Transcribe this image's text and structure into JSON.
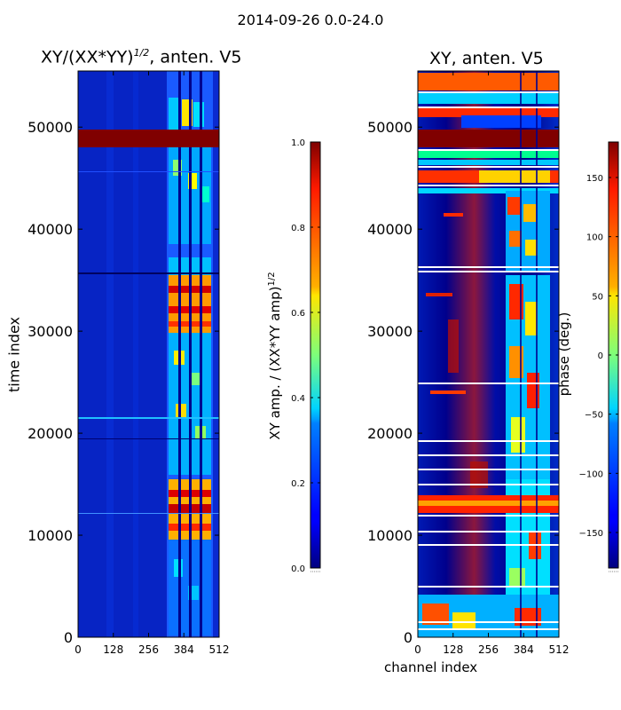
{
  "suptitle": "2014-09-26 0.0-24.0",
  "chart_data": [
    {
      "type": "heatmap",
      "title": "XY/(XX*YY)^1/2, anten. V5",
      "title_main": "XY/(XX*YY)",
      "title_sup": "1/2",
      "title_rest": ", anten. V5",
      "xlabel": "",
      "ylabel": "time index",
      "xlim": [
        0,
        512
      ],
      "ylim": [
        0,
        55500
      ],
      "xticks": [
        "0",
        "128",
        "256",
        "384",
        "512"
      ],
      "yticks": [
        "0",
        "10000",
        "20000",
        "30000",
        "40000",
        "50000"
      ],
      "colorbar": {
        "label": "XY amp. / (XX*YY amp)^1/2",
        "label_main": "XY amp. / (XX*YY amp)",
        "label_sup": "1/2",
        "range": [
          0.0,
          1.0
        ],
        "ticks": [
          "0.0",
          "0.2",
          "0.4",
          "0.6",
          "0.8",
          "1.0"
        ]
      }
    },
    {
      "type": "heatmap",
      "title": "XY, anten. V5",
      "xlabel": "channel index",
      "ylabel": "",
      "xlim": [
        0,
        512
      ],
      "ylim": [
        0,
        55500
      ],
      "xticks": [
        "0",
        "128",
        "256",
        "384",
        "512"
      ],
      "yticks": [
        "0",
        "10000",
        "20000",
        "30000",
        "40000",
        "50000"
      ],
      "colorbar": {
        "label": "phase (deg.)",
        "range": [
          -180,
          180
        ],
        "ticks": [
          "−150",
          "−100",
          "−50",
          "0",
          "50",
          "100",
          "150"
        ]
      }
    }
  ]
}
